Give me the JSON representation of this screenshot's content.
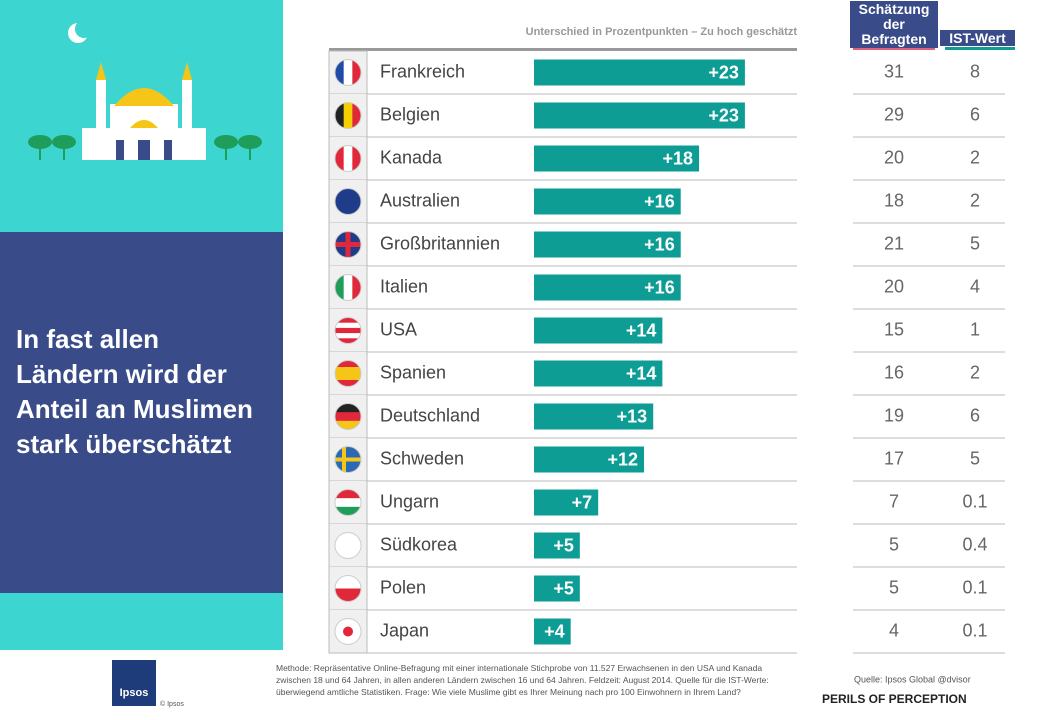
{
  "chart_data": {
    "type": "bar",
    "subtitle": "Unterschied in Prozentpunkten – Zu hoch geschätzt",
    "headline": "In fast allen Ländern wird der Anteil an Muslimen stark überschätzt",
    "color": "#0e9d95",
    "categories": [
      "Frankreich",
      "Belgien",
      "Kanada",
      "Australien",
      "Großbritannien",
      "Italien",
      "USA",
      "Spanien",
      "Deutschland",
      "Schweden",
      "Ungarn",
      "Südkorea",
      "Polen",
      "Japan"
    ],
    "values": [
      23,
      23,
      18,
      16,
      16,
      16,
      14,
      14,
      13,
      12,
      7,
      5,
      5,
      4
    ],
    "value_labels": [
      "+23",
      "+23",
      "+18",
      "+16",
      "+16",
      "+16",
      "+14",
      "+14",
      "+13",
      "+12",
      "+7",
      "+5",
      "+5",
      "+4"
    ],
    "table": {
      "columns": [
        "Schätzung der Befragten",
        "IST-Wert"
      ],
      "estimate": [
        31,
        29,
        20,
        18,
        21,
        20,
        15,
        16,
        19,
        17,
        7,
        5,
        5,
        4
      ],
      "actual": [
        8,
        6,
        2,
        2,
        5,
        4,
        1,
        2,
        6,
        5,
        0.1,
        0.4,
        0.1,
        0.1
      ]
    },
    "footer": {
      "method": "Methode: Repräsentative Online-Befragung mit einer internationale Stichprobe von 11.527 Erwachsenen in den USA und Kanada zwischen 18 und 64 Jahren, in allen anderen Ländern zwischen 16 und 64 Jahren. Feldzeit: August 2014. Quelle für die IST-Werte: überwiegend amtliche Statistiken. Frage: Wie viele Muslime gibt es Ihrer Meinung nach pro 100 Einwohnern in Ihrem Land?",
      "source": "Quelle: Ipsos Global @dvisor",
      "brand": "PERILS OF PERCEPTION",
      "logo": "Ipsos",
      "copyright": "© Ipsos"
    }
  }
}
